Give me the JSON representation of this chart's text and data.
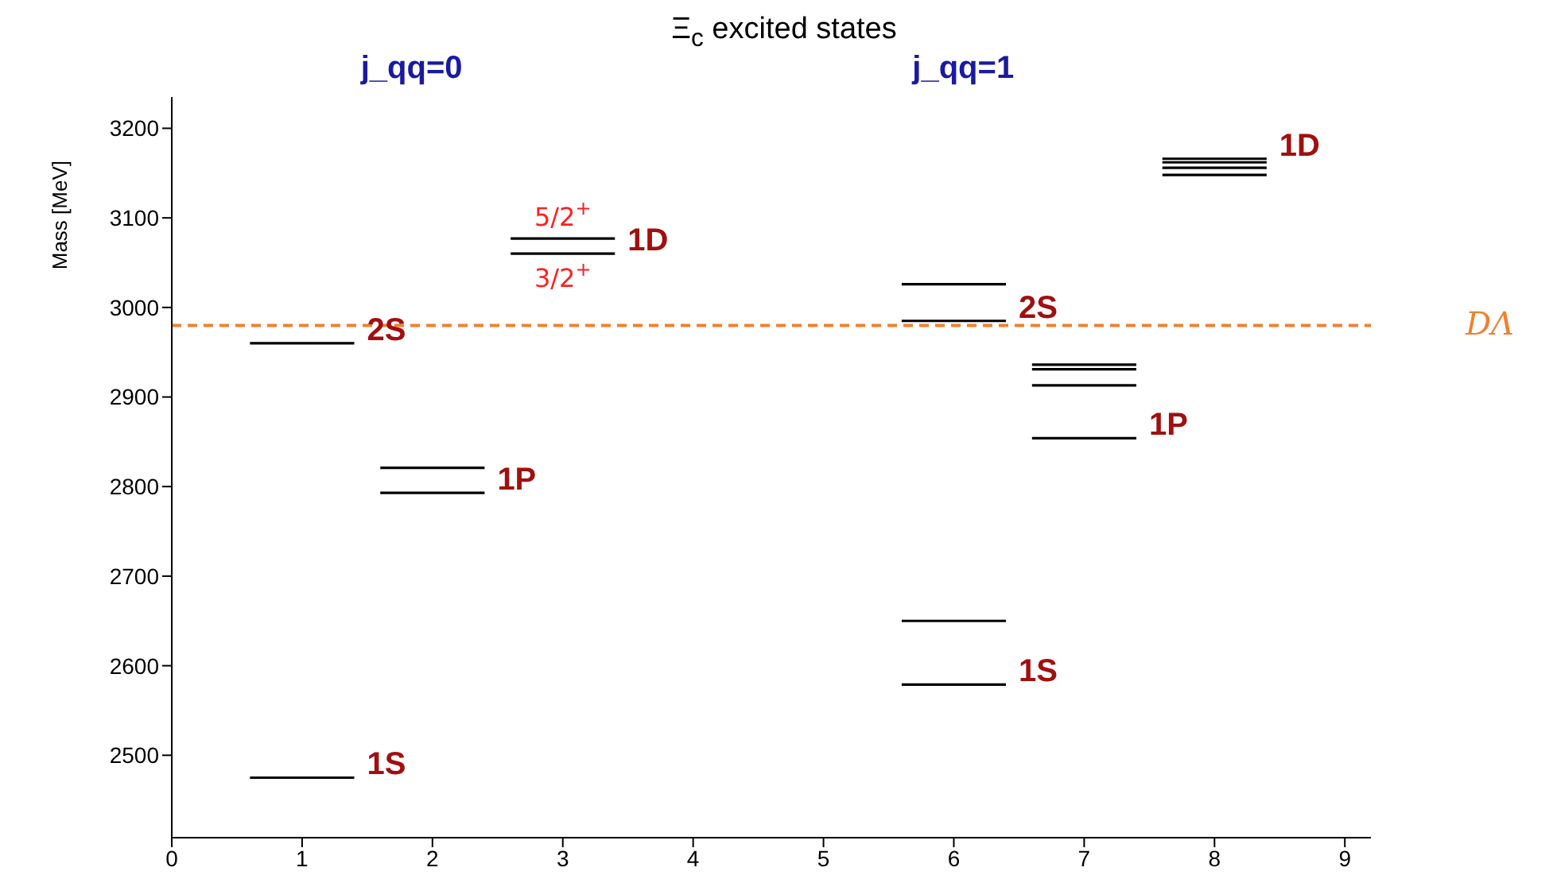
{
  "chart_data": {
    "type": "line",
    "title": "Ξ$_{c}$ excited states",
    "ylabel": "Mass [MeV]",
    "series": [
      {
        "color": "#000000",
        "x": [
          0.6,
          1.4
        ],
        "values": [
          2475,
          2475
        ]
      },
      {
        "color": "#000000",
        "x": [
          1.6,
          2.4
        ],
        "values": [
          2821,
          2821
        ]
      },
      {
        "color": "#000000",
        "x": [
          1.6,
          2.4
        ],
        "values": [
          2793,
          2793
        ]
      },
      {
        "color": "#000000",
        "x": [
          0.6,
          1.4
        ],
        "values": [
          2960,
          2960
        ]
      },
      {
        "color": "#000000",
        "x": [
          2.6,
          3.4
        ],
        "values": [
          3077,
          3077
        ]
      },
      {
        "color": "#000000",
        "x": [
          2.6,
          3.4
        ],
        "values": [
          3060,
          3060
        ]
      },
      {
        "color": "#000000",
        "x": [
          5.6,
          6.4
        ],
        "values": [
          2579,
          2579
        ]
      },
      {
        "color": "#000000",
        "x": [
          5.6,
          6.4
        ],
        "values": [
          2650,
          2650
        ]
      },
      {
        "color": "#000000",
        "x": [
          5.6,
          6.4
        ],
        "values": [
          3026,
          3026
        ]
      },
      {
        "color": "#000000",
        "x": [
          5.6,
          6.4
        ],
        "values": [
          2985,
          2985
        ]
      },
      {
        "color": "#000000",
        "x": [
          6.6,
          7.4
        ],
        "values": [
          2936,
          2936
        ]
      },
      {
        "color": "#000000",
        "x": [
          6.6,
          7.4
        ],
        "values": [
          2931,
          2931
        ]
      },
      {
        "color": "#000000",
        "x": [
          6.6,
          7.4
        ],
        "values": [
          2913,
          2913
        ]
      },
      {
        "color": "#000000",
        "x": [
          6.6,
          7.4
        ],
        "values": [
          2854,
          2854
        ]
      },
      {
        "color": "#000000",
        "x": [
          7.6,
          8.4
        ],
        "values": [
          3166,
          3166
        ]
      },
      {
        "color": "#000000",
        "x": [
          7.6,
          8.4
        ],
        "values": [
          3162,
          3162
        ]
      },
      {
        "color": "#000000",
        "x": [
          7.6,
          8.4
        ],
        "values": [
          3156,
          3156
        ]
      },
      {
        "color": "#000000",
        "x": [
          7.6,
          8.4
        ],
        "values": [
          3148,
          3148
        ]
      }
    ],
    "marker": "none",
    "line_style": "solid",
    "xlim": [
      0,
      9.2
    ],
    "xticks": [
      0,
      1,
      2,
      3,
      4,
      5,
      6,
      7,
      8,
      9
    ],
    "ylim": [
      2408,
      3235
    ],
    "yticks": [
      2500,
      2600,
      2700,
      2800,
      2900,
      3000,
      3100,
      3200
    ],
    "ref_lines": [
      {
        "axis": "y",
        "value": 2980,
        "label": "DΛ",
        "color": "#f08030",
        "line_style": "dashed"
      }
    ],
    "annotations": [
      "j_qq=0",
      "j_qq=1",
      {
        "text": "1S",
        "x": 1.4,
        "y": 2475
      },
      {
        "text": "1P",
        "x": 2.4,
        "y": 2793
      },
      {
        "text": "2S",
        "x": 1.4,
        "y": 2960
      },
      {
        "text": "1D",
        "x": 3.4,
        "y": 3060
      },
      {
        "text": "5/2$^{+}$",
        "x": 3.0,
        "y": 3077
      },
      {
        "text": "3/2$^{+}$",
        "x": 3.0,
        "y": 3060
      },
      {
        "text": "1S",
        "x": 6.4,
        "y": 2579
      },
      {
        "text": "2S",
        "x": 6.4,
        "y": 2985
      },
      {
        "text": "1P",
        "x": 7.4,
        "y": 2854
      },
      {
        "text": "1D",
        "x": 8.4,
        "y": 3166
      }
    ]
  }
}
